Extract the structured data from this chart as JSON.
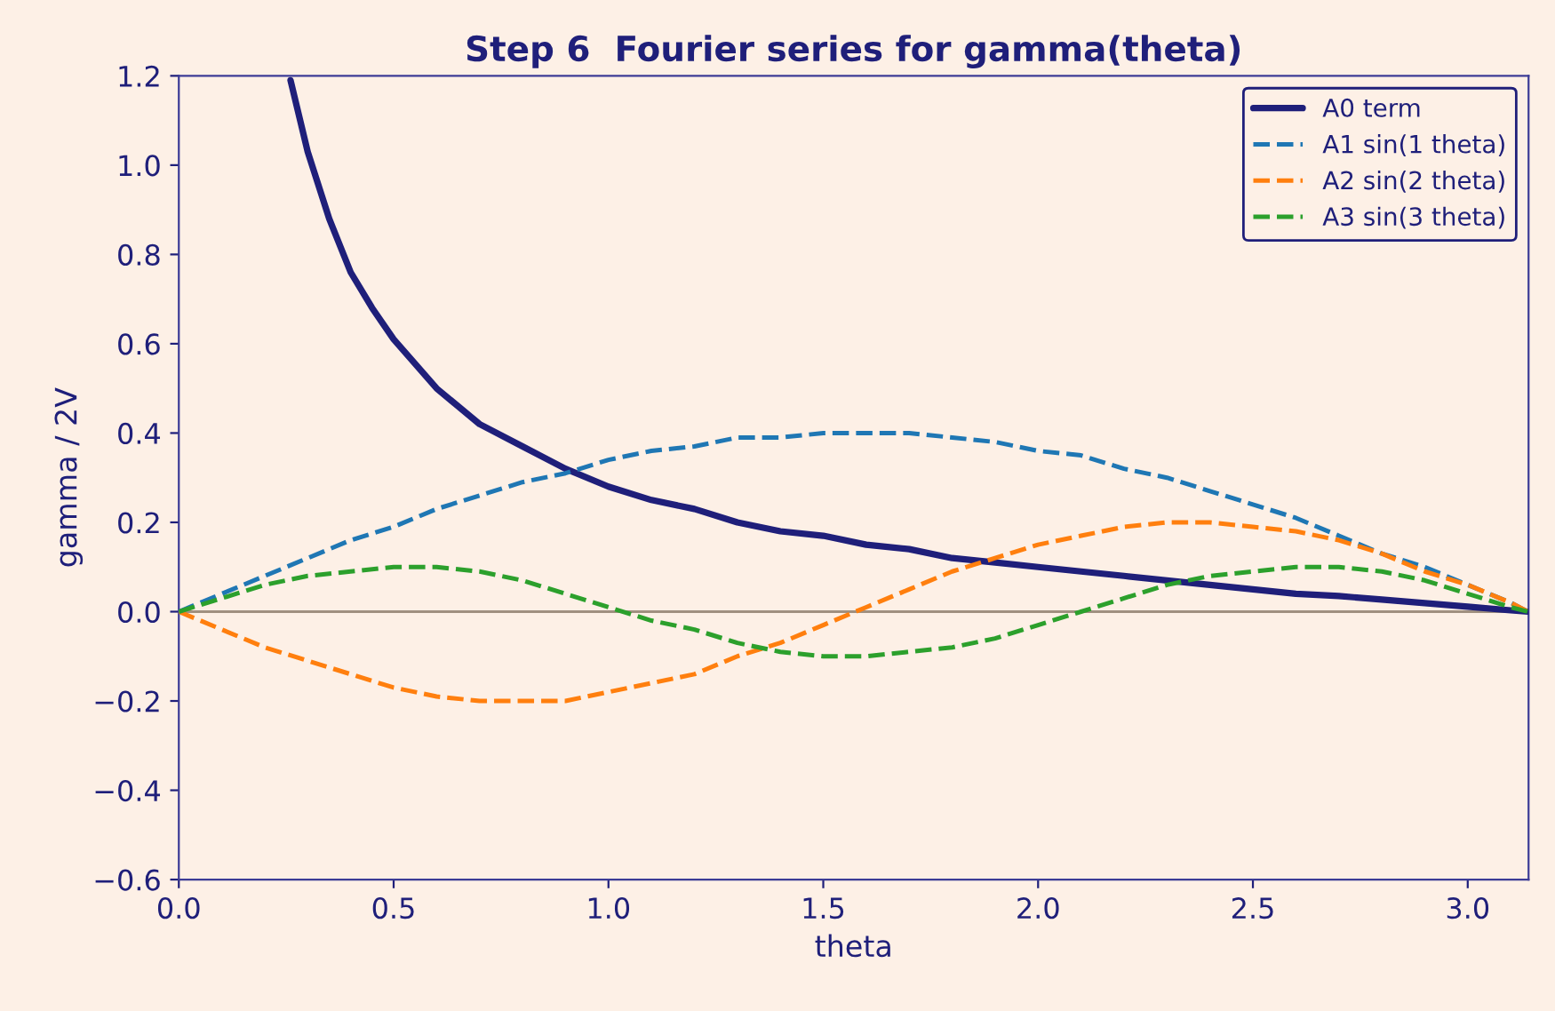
{
  "chart_data": {
    "type": "line",
    "title": "Step 6  Fourier series for gamma(theta)",
    "xlabel": "theta",
    "ylabel": "gamma / 2V",
    "xlim": [
      0,
      3.1416
    ],
    "ylim": [
      -0.6,
      1.2
    ],
    "xticks": [
      {
        "value": 0,
        "label": "0.0"
      },
      {
        "value": 0.5,
        "label": "0.5"
      },
      {
        "value": 1,
        "label": "1.0"
      },
      {
        "value": 1.5,
        "label": "1.5"
      },
      {
        "value": 2,
        "label": "2.0"
      },
      {
        "value": 2.5,
        "label": "2.5"
      },
      {
        "value": 3,
        "label": "3.0"
      }
    ],
    "yticks": [
      {
        "value": -0.6,
        "label": "−0.6"
      },
      {
        "value": -0.4,
        "label": "−0.4"
      },
      {
        "value": -0.2,
        "label": "−0.2"
      },
      {
        "value": 0,
        "label": "0.0"
      },
      {
        "value": 0.2,
        "label": "0.2"
      },
      {
        "value": 0.4,
        "label": "0.4"
      },
      {
        "value": 0.6,
        "label": "0.6"
      },
      {
        "value": 0.8,
        "label": "0.8"
      },
      {
        "value": 1.0,
        "label": "1.0"
      },
      {
        "value": 1.2,
        "label": "1.2"
      }
    ],
    "grid": false,
    "legend": "top right",
    "ref_lines": [
      {
        "axis": "y",
        "value": 0,
        "color": "#a09080"
      }
    ],
    "series": [
      {
        "name": "A0 term",
        "color": "#1f1f7a",
        "line_style": "solid",
        "x": [
          0.26,
          0.3,
          0.35,
          0.4,
          0.45,
          0.5,
          0.6,
          0.7,
          0.8,
          0.9,
          1.0,
          1.1,
          1.2,
          1.3,
          1.4,
          1.5,
          1.6,
          1.7,
          1.8,
          1.9,
          2.0,
          2.1,
          2.2,
          2.3,
          2.4,
          2.5,
          2.6,
          2.7,
          2.8,
          2.9,
          3.0,
          3.1,
          3.14
        ],
        "values": [
          1.19,
          1.03,
          0.88,
          0.76,
          0.68,
          0.61,
          0.5,
          0.42,
          0.37,
          0.32,
          0.28,
          0.25,
          0.23,
          0.2,
          0.18,
          0.17,
          0.15,
          0.14,
          0.12,
          0.11,
          0.1,
          0.09,
          0.08,
          0.07,
          0.06,
          0.05,
          0.04,
          0.035,
          0.027,
          0.019,
          0.011,
          0.003,
          0.0
        ]
      },
      {
        "name": "A1 sin(1 theta)",
        "color": "#1f77b4",
        "line_style": "dashed",
        "x": [
          0,
          0.1,
          0.2,
          0.3,
          0.4,
          0.5,
          0.6,
          0.7,
          0.8,
          0.9,
          1.0,
          1.1,
          1.2,
          1.3,
          1.4,
          1.5,
          1.6,
          1.7,
          1.8,
          1.9,
          2.0,
          2.1,
          2.2,
          2.3,
          2.4,
          2.5,
          2.6,
          2.7,
          2.8,
          2.9,
          3.0,
          3.1,
          3.14
        ],
        "values": [
          0,
          0.04,
          0.08,
          0.12,
          0.16,
          0.19,
          0.23,
          0.26,
          0.29,
          0.31,
          0.34,
          0.36,
          0.37,
          0.39,
          0.39,
          0.4,
          0.4,
          0.4,
          0.39,
          0.38,
          0.36,
          0.35,
          0.32,
          0.3,
          0.27,
          0.24,
          0.21,
          0.17,
          0.13,
          0.1,
          0.06,
          0.02,
          0
        ]
      },
      {
        "name": "A2 sin(2 theta)",
        "color": "#ff7f0e",
        "line_style": "dashed",
        "x": [
          0,
          0.1,
          0.2,
          0.3,
          0.4,
          0.5,
          0.6,
          0.7,
          0.8,
          0.9,
          1.0,
          1.1,
          1.2,
          1.3,
          1.4,
          1.5,
          1.6,
          1.7,
          1.8,
          1.9,
          2.0,
          2.1,
          2.2,
          2.3,
          2.4,
          2.5,
          2.6,
          2.7,
          2.8,
          2.9,
          3.0,
          3.1,
          3.14
        ],
        "values": [
          0,
          -0.04,
          -0.08,
          -0.11,
          -0.14,
          -0.17,
          -0.19,
          -0.2,
          -0.2,
          -0.2,
          -0.18,
          -0.16,
          -0.14,
          -0.1,
          -0.07,
          -0.03,
          0.01,
          0.05,
          0.09,
          0.12,
          0.15,
          0.17,
          0.19,
          0.2,
          0.2,
          0.19,
          0.18,
          0.16,
          0.13,
          0.09,
          0.06,
          0.02,
          0
        ]
      },
      {
        "name": "A3 sin(3 theta)",
        "color": "#2ca02c",
        "line_style": "dashed",
        "x": [
          0,
          0.1,
          0.2,
          0.3,
          0.4,
          0.5,
          0.6,
          0.7,
          0.8,
          0.9,
          1.0,
          1.1,
          1.2,
          1.3,
          1.4,
          1.5,
          1.6,
          1.7,
          1.8,
          1.9,
          2.0,
          2.1,
          2.2,
          2.3,
          2.4,
          2.5,
          2.6,
          2.7,
          2.8,
          2.9,
          3.0,
          3.1,
          3.14
        ],
        "values": [
          0,
          0.03,
          0.06,
          0.08,
          0.09,
          0.1,
          0.1,
          0.09,
          0.07,
          0.04,
          0.01,
          -0.02,
          -0.04,
          -0.07,
          -0.09,
          -0.1,
          -0.1,
          -0.09,
          -0.08,
          -0.06,
          -0.03,
          0.0,
          0.03,
          0.06,
          0.08,
          0.09,
          0.1,
          0.1,
          0.09,
          0.07,
          0.04,
          0.01,
          0
        ]
      }
    ]
  }
}
